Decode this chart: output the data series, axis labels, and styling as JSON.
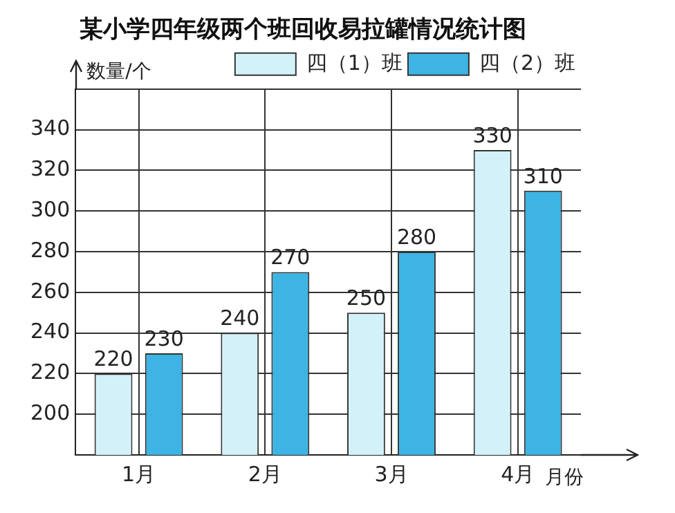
{
  "chart_data": {
    "type": "bar",
    "title": "某小学四年级两个班回收易拉罐情况统计图",
    "xlabel": "月份",
    "ylabel": "数量/个",
    "categories": [
      "1月",
      "2月",
      "3月",
      "4月"
    ],
    "series": [
      {
        "name": "四（1）班",
        "color": "#d3f1f8",
        "values": [
          220,
          240,
          250,
          330
        ]
      },
      {
        "name": "四（2）班",
        "color": "#3db4e4",
        "values": [
          230,
          270,
          280,
          310
        ]
      }
    ],
    "ylim": [
      180,
      360
    ],
    "yticks": [
      200,
      220,
      240,
      260,
      280,
      300,
      320,
      340,
      {
        "value": 360,
        "label": null
      }
    ],
    "grid": true,
    "legend": "top right",
    "data_labels": true
  }
}
